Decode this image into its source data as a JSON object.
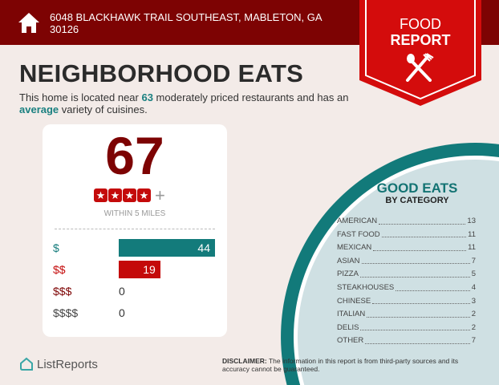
{
  "header": {
    "address": "6048 BLACKHAWK TRAIL SOUTHEAST, MABLETON, GA 30126",
    "icon": "house-icon"
  },
  "badge": {
    "line1": "FOOD",
    "line2": "REPORT",
    "icon": "utensils-icon"
  },
  "title": "NEIGHBORHOOD EATS",
  "subtitle": {
    "pre": "This home is located near ",
    "count": "63",
    "mid": " moderately priced restaurants and has an ",
    "variety": "average",
    "post": " variety of cuisines."
  },
  "rating_card": {
    "total": "67",
    "stars": 4,
    "plus": "+",
    "radius": "WITHIN 5 MILES",
    "price_levels": [
      {
        "label": "$",
        "value": 44,
        "color": "#137b7b"
      },
      {
        "label": "$$",
        "value": 19,
        "color": "#c40a0a"
      },
      {
        "label": "$$$",
        "value": 0,
        "color": "#7d0303"
      },
      {
        "label": "$$$$",
        "value": 0,
        "color": "#444444"
      }
    ]
  },
  "good_eats": {
    "title": "GOOD EATS",
    "subtitle": "BY CATEGORY",
    "categories": [
      {
        "name": "AMERICAN",
        "count": "13"
      },
      {
        "name": "FAST FOOD",
        "count": "11"
      },
      {
        "name": "MEXICAN",
        "count": "11"
      },
      {
        "name": "ASIAN",
        "count": "7"
      },
      {
        "name": "PIZZA",
        "count": "5"
      },
      {
        "name": "STEAKHOUSES",
        "count": "4"
      },
      {
        "name": "CHINESE",
        "count": "3"
      },
      {
        "name": "ITALIAN",
        "count": "2"
      },
      {
        "name": "DELIS",
        "count": "2"
      },
      {
        "name": "OTHER",
        "count": "7"
      }
    ]
  },
  "logo": "ListReports",
  "disclaimer": {
    "label": "DISCLAIMER:",
    "text": " The information in this report is from third-party sources and its accuracy cannot be guaranteed."
  },
  "colors": {
    "header": "#7d0303",
    "accent": "#c40a0a",
    "teal": "#137b7b",
    "background": "#f3ebe8"
  }
}
